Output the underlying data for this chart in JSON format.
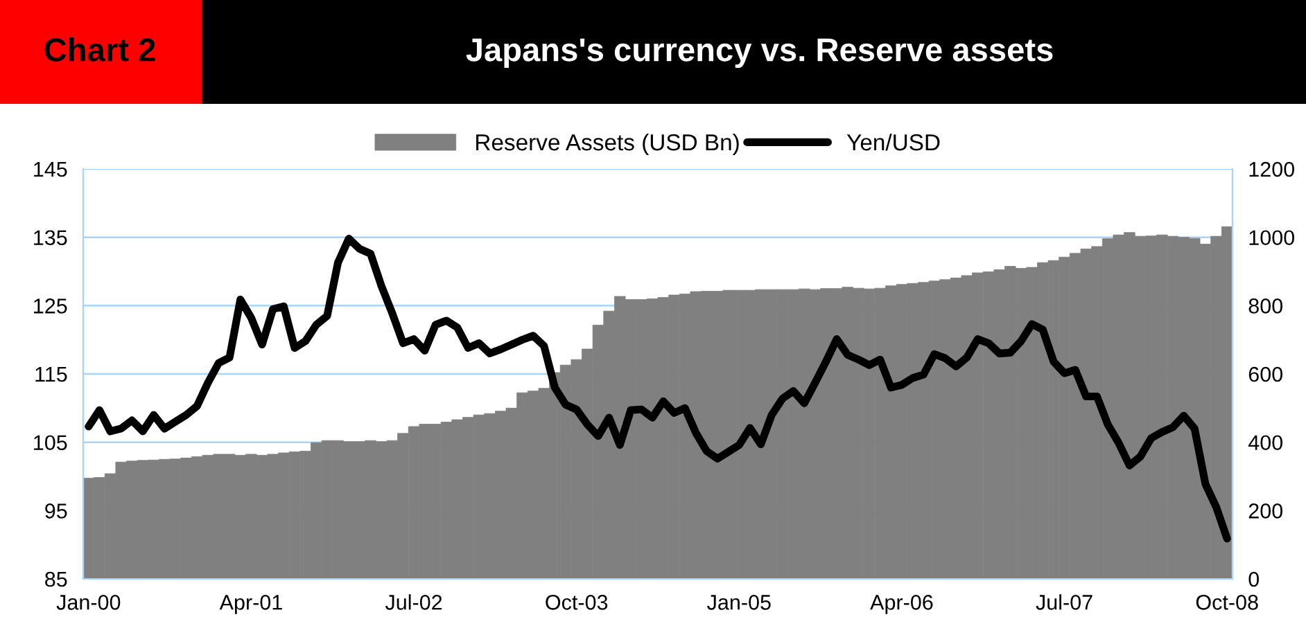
{
  "chart_data": {
    "type": "bar",
    "title": "Japans's currency vs. Reserve assets",
    "annotations": [
      "Chart 2"
    ],
    "categories": [
      "Jan-00",
      null,
      null,
      null,
      null,
      null,
      null,
      null,
      null,
      null,
      null,
      null,
      null,
      null,
      null,
      "Apr-01",
      null,
      null,
      null,
      null,
      null,
      null,
      null,
      null,
      null,
      null,
      null,
      null,
      null,
      null,
      "Jul-02",
      null,
      null,
      null,
      null,
      null,
      null,
      null,
      null,
      null,
      null,
      null,
      null,
      null,
      null,
      "Oct-03",
      null,
      null,
      null,
      null,
      null,
      null,
      null,
      null,
      null,
      null,
      null,
      null,
      null,
      null,
      "Jan-05",
      null,
      null,
      null,
      null,
      null,
      null,
      null,
      null,
      null,
      null,
      null,
      null,
      null,
      null,
      "Apr-06",
      null,
      null,
      null,
      null,
      null,
      null,
      null,
      null,
      null,
      null,
      null,
      null,
      null,
      null,
      "Jul-07",
      null,
      null,
      null,
      null,
      null,
      null,
      null,
      null,
      null,
      null,
      null,
      null,
      null,
      null,
      "Oct-08"
    ],
    "series": [
      {
        "name": "Reserve Assets (USD Bn)",
        "axis": "y2",
        "color": "#808080",
        "values": [
          295,
          297,
          308,
          342,
          345,
          347,
          348,
          350,
          351,
          354,
          358,
          362,
          365,
          365,
          362,
          365,
          362,
          365,
          369,
          372,
          374,
          399,
          405,
          405,
          402,
          402,
          405,
          402,
          405,
          426,
          446,
          453,
          453,
          459,
          466,
          473,
          480,
          484,
          491,
          500,
          545,
          550,
          558,
          604,
          626,
          642,
          673,
          743,
          784,
          827,
          818,
          818,
          820,
          824,
          831,
          834,
          841,
          842,
          842,
          845,
          845,
          845,
          847,
          847,
          847,
          847,
          849,
          847,
          850,
          850,
          854,
          851,
          849,
          851,
          858,
          862,
          865,
          868,
          872,
          876,
          881,
          888,
          896,
          899,
          905,
          915,
          909,
          912,
          926,
          932,
          942,
          953,
          966,
          973,
          996,
          1007,
          1014,
          1003,
          1004,
          1007,
          1003,
          1000,
          997,
          980,
          1003,
          1031
        ]
      },
      {
        "name": "Yen/USD",
        "type": "line",
        "axis": "y",
        "color": "#000000",
        "values": [
          107.3,
          109.7,
          106.6,
          107.0,
          108.2,
          106.6,
          109.0,
          107.0,
          108.0,
          109.0,
          110.3,
          113.7,
          116.6,
          117.4,
          125.9,
          123.2,
          119.3,
          124.5,
          124.9,
          118.8,
          119.8,
          122.2,
          123.5,
          131.3,
          134.8,
          133.3,
          132.6,
          127.9,
          123.9,
          119.5,
          120.1,
          118.4,
          122.2,
          122.8,
          121.8,
          118.8,
          119.5,
          118.0,
          118.6,
          119.3,
          120.0,
          120.6,
          119.1,
          113.0,
          110.5,
          109.8,
          107.6,
          105.9,
          108.6,
          104.6,
          109.7,
          109.8,
          108.6,
          111.0,
          109.3,
          110.0,
          106.4,
          103.7,
          102.6,
          103.6,
          104.6,
          107.1,
          104.7,
          109.0,
          111.4,
          112.5,
          110.7,
          113.7,
          116.8,
          120.1,
          117.8,
          117.1,
          116.3,
          117.1,
          113.0,
          113.4,
          114.4,
          114.9,
          117.9,
          117.3,
          116.1,
          117.4,
          120.1,
          119.5,
          118.0,
          118.1,
          119.8,
          122.3,
          121.5,
          116.8,
          115.1,
          115.6,
          111.7,
          111.7,
          107.6,
          104.9,
          101.6,
          102.9,
          105.6,
          106.5,
          107.2,
          108.9,
          107.0,
          98.9,
          95.5,
          90.9
        ]
      }
    ],
    "ylim": [
      85,
      145
    ],
    "yticks": [
      85,
      95,
      105,
      115,
      125,
      135,
      145
    ],
    "y2lim": [
      0,
      1200
    ],
    "y2ticks": [
      0,
      200,
      400,
      600,
      800,
      1000,
      1200
    ],
    "grid": "y",
    "legend": "top",
    "line_style": "solid",
    "marker": "none"
  }
}
